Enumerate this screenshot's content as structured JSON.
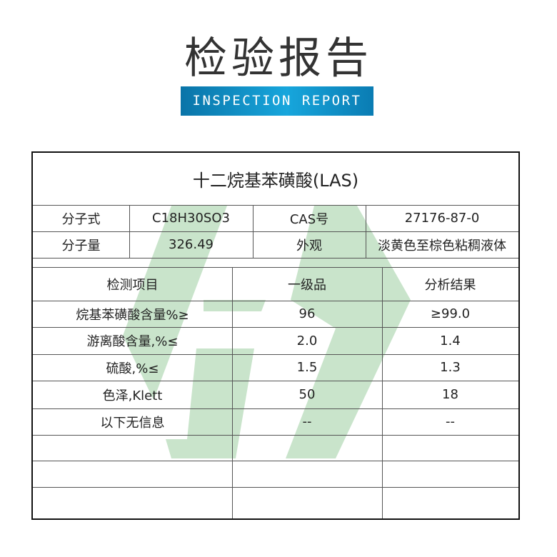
{
  "header": {
    "title": "检验报告",
    "subtitle": "INSPECTION REPORT"
  },
  "colors": {
    "banner": "#1294c8",
    "watermark": "#c9e4cb"
  },
  "report": {
    "product": "十二烷基苯磺酸(LAS)",
    "info": [
      {
        "label": "分子式",
        "value": "C18H30SO3",
        "label2": "CAS号",
        "value2": "27176-87-0"
      },
      {
        "label": "分子量",
        "value": "326.49",
        "label2": "外观",
        "value2": "淡黄色至棕色粘稠液体"
      }
    ],
    "columns": [
      "检测项目",
      "一级品",
      "分析结果"
    ],
    "rows": [
      [
        "烷基苯磺酸含量%≥",
        "96",
        "≥99.0"
      ],
      [
        "游离酸含量,%≤",
        "2.0",
        "1.4"
      ],
      [
        "硫酸,%≤",
        "1.5",
        "1.3"
      ],
      [
        "色泽,Klett",
        "50",
        "18"
      ],
      [
        "以下无信息",
        "--",
        "--"
      ],
      [
        "",
        "",
        ""
      ],
      [
        "",
        "",
        ""
      ],
      [
        "",
        "",
        ""
      ]
    ]
  }
}
